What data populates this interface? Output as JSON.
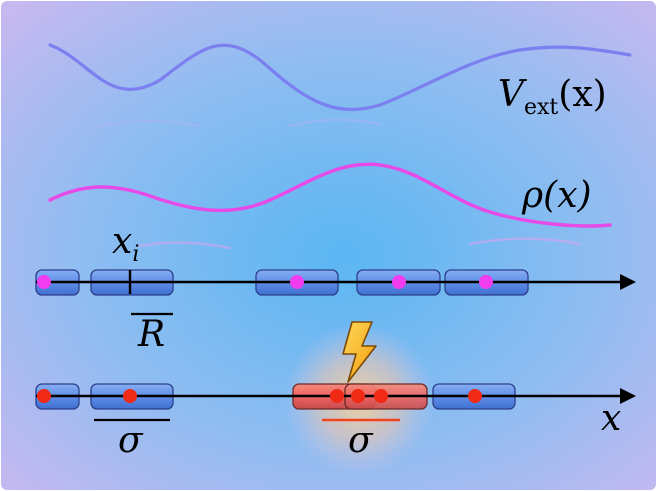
{
  "labels": {
    "v_ext_main": "V",
    "v_ext_sub": "ext",
    "v_ext_arg": "(x)",
    "rho": "ρ(x)",
    "x_i_main": "x",
    "x_i_sub": "i",
    "r_label": "R",
    "sigma_left": "σ",
    "sigma_center": "σ",
    "x_axis": "x"
  },
  "colors": {
    "background_center": "#5ab6f2",
    "background_edge": "#c8b8f0",
    "v_ext_curve": "#7b7ff0",
    "rho_curve": "#e64be8",
    "bead_fill": "#5f8ee8",
    "bead_stroke": "#2c3f8a",
    "rho_dot": "#f23cf0",
    "sigma_dot": "#f02a14",
    "collision_fill": "#ef6c6c",
    "sigma_underline": "#f0441e",
    "bolt": "#f6b21c"
  },
  "icons": {
    "collision": "lightning-bolt-icon"
  }
}
